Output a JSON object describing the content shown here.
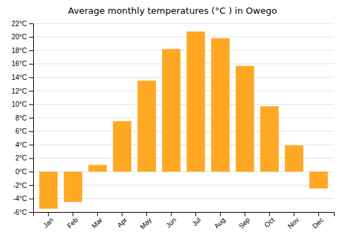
{
  "chart_data": {
    "type": "bar",
    "title": "Average monthly temperatures (°C ) in Owego",
    "categories": [
      "Jan",
      "Feb",
      "Mar",
      "Apr",
      "May",
      "Jun",
      "Jul",
      "Aug",
      "Sep",
      "Oct",
      "Nov",
      "Dec"
    ],
    "values": [
      -5.5,
      -4.5,
      1.0,
      7.5,
      13.5,
      18.2,
      20.8,
      19.8,
      15.7,
      9.7,
      3.9,
      -2.5
    ],
    "color": "#FFA824",
    "ylim": [
      -6,
      22
    ],
    "yticks": [
      {
        "value": -6,
        "label": "-6°C"
      },
      {
        "value": -4,
        "label": "-4°C"
      },
      {
        "value": -2,
        "label": "-2°C"
      },
      {
        "value": 0,
        "label": "0°C"
      },
      {
        "value": 2,
        "label": "2°C"
      },
      {
        "value": 4,
        "label": "4°C"
      },
      {
        "value": 6,
        "label": "6°C"
      },
      {
        "value": 8,
        "label": "8°C"
      },
      {
        "value": 10,
        "label": "10°C"
      },
      {
        "value": 12,
        "label": "12°C"
      },
      {
        "value": 14,
        "label": "14°C"
      },
      {
        "value": 16,
        "label": "16°C"
      },
      {
        "value": 18,
        "label": "18°C"
      },
      {
        "value": 20,
        "label": "20°C"
      },
      {
        "value": 22,
        "label": "22°C"
      }
    ],
    "grid": true
  }
}
